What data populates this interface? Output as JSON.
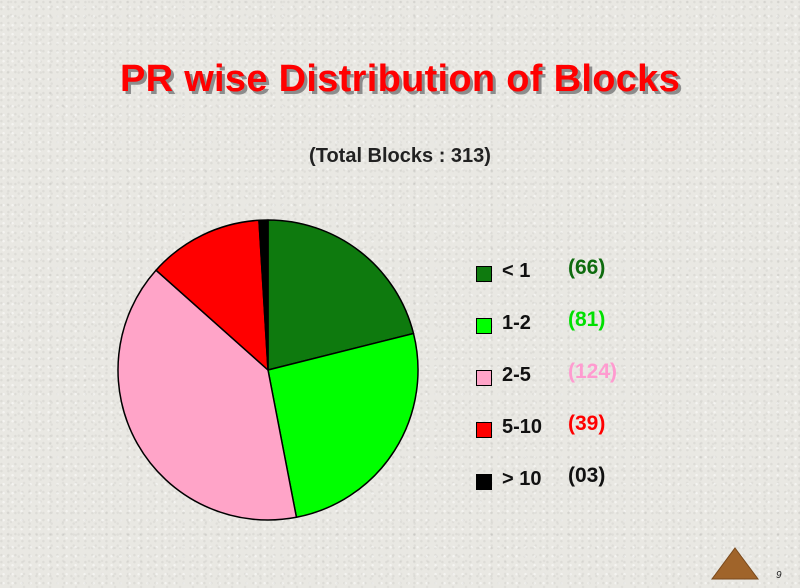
{
  "slide": {
    "title": "PR wise Distribution of Blocks",
    "subtitle": "(Total Blocks : 313)",
    "page_number": "9"
  },
  "chart_data": {
    "type": "pie",
    "title": "PR wise Distribution of Blocks",
    "subtitle": "(Total Blocks : 313)",
    "total": 313,
    "slices": [
      {
        "label": "< 1",
        "count_label": "(66)",
        "value": 66,
        "color": "#0e7a0e",
        "text_color": "#0e6b0e"
      },
      {
        "label": "1-2",
        "count_label": "(81)",
        "value": 81,
        "color": "#00ff00",
        "text_color": "#00e000"
      },
      {
        "label": "2-5",
        "count_label": "(124)",
        "value": 124,
        "color": "#ffa4c8",
        "text_color": "#ff9bd0"
      },
      {
        "label": "5-10",
        "count_label": "(39)",
        "value": 39,
        "color": "#ff0000",
        "text_color": "#ff0000"
      },
      {
        "label": "> 10",
        "count_label": "(03)",
        "value": 3,
        "color": "#000000",
        "text_color": "#111111"
      }
    ],
    "start_angle": "12 o'clock",
    "direction": "clockwise",
    "legend_position": "right"
  },
  "icons": {
    "nav": "triangle-up-icon"
  },
  "colors": {
    "title": "#ff0000",
    "background": "#e9e8e3",
    "nav_arrow": "#a0642a"
  }
}
